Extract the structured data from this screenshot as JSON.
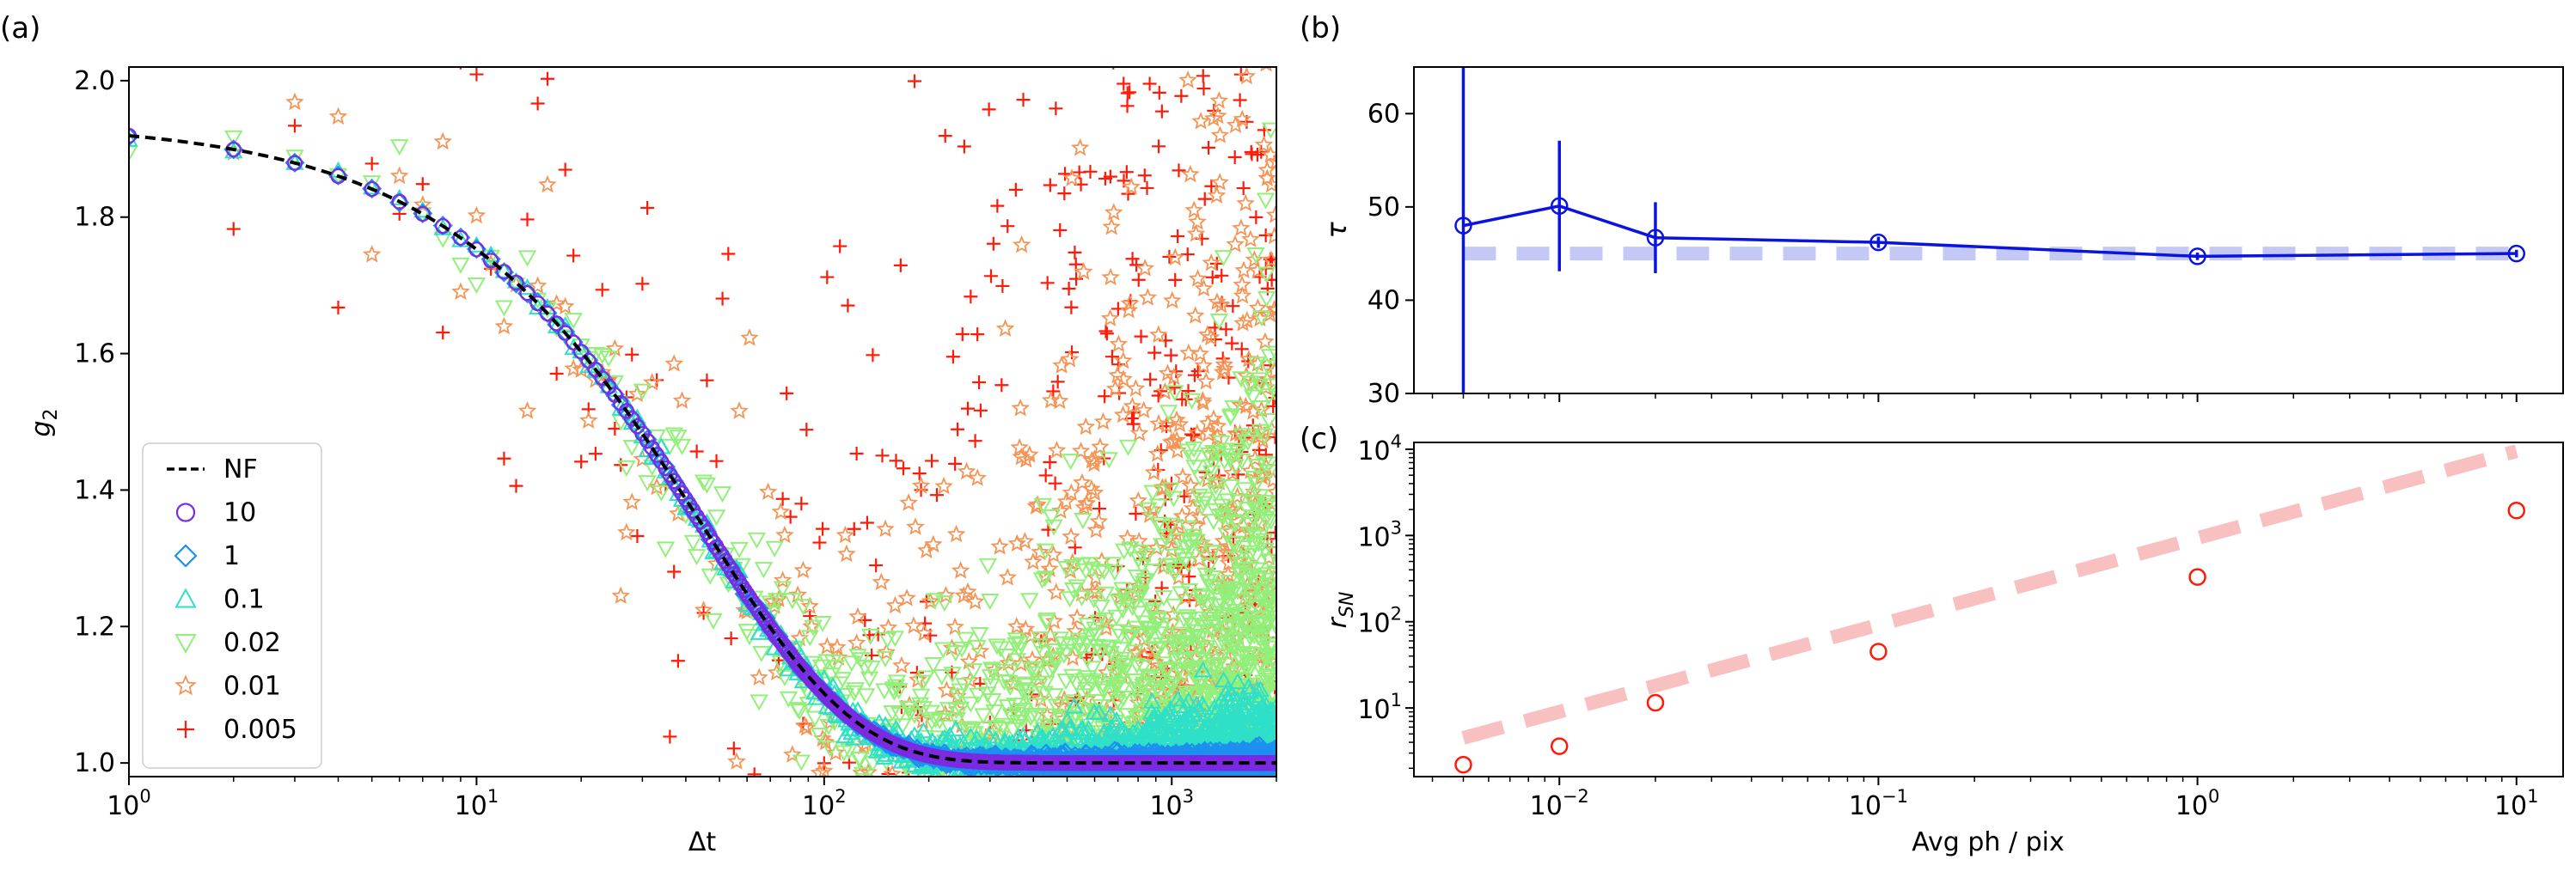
{
  "panel_labels": {
    "a": "(a)",
    "b": "(b)",
    "c": "(c)"
  },
  "chart_data": [
    {
      "id": "a",
      "type": "scatter",
      "xlabel": "Δt",
      "ylabel": "g",
      "ylabel_sub": "2",
      "xscale": "log",
      "xlim": [
        1,
        2000
      ],
      "ylim": [
        0.98,
        2.02
      ],
      "xticks": [
        {
          "value": 1,
          "base": "10",
          "exp": "0"
        },
        {
          "value": 10,
          "base": "10",
          "exp": "1"
        },
        {
          "value": 100,
          "base": "10",
          "exp": "2"
        },
        {
          "value": 1000,
          "base": "10",
          "exp": "3"
        }
      ],
      "yticks": [
        {
          "value": 1.0,
          "label": "1.0"
        },
        {
          "value": 1.2,
          "label": "1.2"
        },
        {
          "value": 1.4,
          "label": "1.4"
        },
        {
          "value": 1.6,
          "label": "1.6"
        },
        {
          "value": 1.8,
          "label": "1.8"
        },
        {
          "value": 2.0,
          "label": "2.0"
        }
      ],
      "model": {
        "name": "NF",
        "form": "1 + 0.94*exp(-x/45)",
        "beta": 0.94,
        "tau": 45,
        "color": "#000000",
        "dash": true
      },
      "series": [
        {
          "name": "10",
          "marker": "circle",
          "color": "#7b2be2",
          "noise": 0.0
        },
        {
          "name": "1",
          "marker": "diamond",
          "color": "#1c8ff0",
          "noise": 0.003
        },
        {
          "name": "0.1",
          "marker": "triangle-up",
          "color": "#2fe0c8",
          "noise": 0.015
        },
        {
          "name": "0.02",
          "marker": "triangle-down",
          "color": "#92f07a",
          "noise": 0.05
        },
        {
          "name": "0.01",
          "marker": "star",
          "color": "#f59455",
          "noise": 0.12
        },
        {
          "name": "0.005",
          "marker": "plus",
          "color": "#ff1a08",
          "noise": 0.33
        }
      ],
      "legend": {
        "position": "lower left",
        "entries": [
          "NF",
          "10",
          "1",
          "0.1",
          "0.02",
          "0.01",
          "0.005"
        ]
      }
    },
    {
      "id": "b",
      "type": "line",
      "xscale": "log",
      "ylabel": "τ",
      "xlim": [
        0.0035,
        14
      ],
      "ylim": [
        30,
        65
      ],
      "yticks": [
        {
          "value": 30,
          "label": "30"
        },
        {
          "value": 40,
          "label": "40"
        },
        {
          "value": 50,
          "label": "50"
        },
        {
          "value": 60,
          "label": "60"
        }
      ],
      "x": [
        0.005,
        0.01,
        0.02,
        0.1,
        1,
        10
      ],
      "y": [
        48.0,
        50.1,
        46.7,
        46.2,
        44.7,
        45.0
      ],
      "yerr": [
        48,
        7.0,
        3.8,
        0.6,
        0.4,
        0.4
      ],
      "reference": {
        "y": 45,
        "color": "#c4c8f4"
      },
      "color": "#0a14e0"
    },
    {
      "id": "c",
      "type": "scatter",
      "xscale": "log",
      "yscale": "log",
      "xlabel": "Avg ph / pix",
      "ylabel": "r",
      "ylabel_sub": "SN",
      "xlim": [
        0.0035,
        14
      ],
      "ylim": [
        1.6,
        12000
      ],
      "xticks": [
        {
          "value": 0.01,
          "base": "10",
          "exp": "−2"
        },
        {
          "value": 0.1,
          "base": "10",
          "exp": "−1"
        },
        {
          "value": 1,
          "base": "10",
          "exp": "0"
        },
        {
          "value": 10,
          "base": "10",
          "exp": "1"
        }
      ],
      "yticks": [
        {
          "value": 10,
          "base": "10",
          "exp": "1"
        },
        {
          "value": 100,
          "base": "10",
          "exp": "2"
        },
        {
          "value": 1000,
          "base": "10",
          "exp": "3"
        },
        {
          "value": 10000,
          "base": "10",
          "exp": "4"
        }
      ],
      "x": [
        0.005,
        0.01,
        0.02,
        0.1,
        1,
        10
      ],
      "y": [
        2.2,
        3.6,
        11.5,
        45,
        330,
        1950
      ],
      "reference": {
        "x": [
          0.005,
          10
        ],
        "y": [
          4.5,
          9500
        ],
        "color": "#f8c0c0"
      },
      "color": "#ff1a08"
    }
  ]
}
